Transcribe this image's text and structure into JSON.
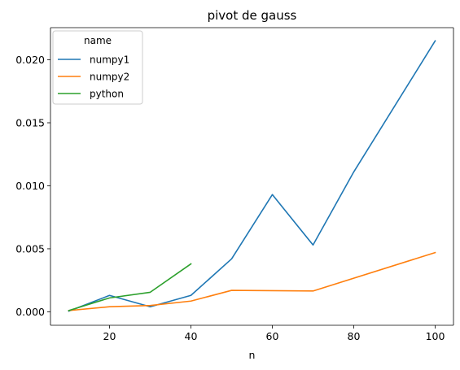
{
  "chart_data": {
    "type": "line",
    "title": "pivot de gauss",
    "xlabel": "n",
    "ylabel": "",
    "xlim": [
      5.5,
      104.5
    ],
    "ylim": [
      -0.00107,
      0.02255
    ],
    "xticks": [
      20,
      40,
      60,
      80,
      100
    ],
    "yticks": [
      0.0,
      0.005,
      0.01,
      0.015,
      0.02
    ],
    "ytick_labels": [
      "0.000",
      "0.005",
      "0.010",
      "0.015",
      "0.020"
    ],
    "grid": false,
    "legend": {
      "title": "name",
      "placement": "top-left"
    },
    "series": [
      {
        "name": "numpy1",
        "color": "#1f77b4",
        "x": [
          10,
          20,
          30,
          40,
          50,
          60,
          70,
          80,
          100
        ],
        "y": [
          5e-05,
          0.0013,
          0.0004,
          0.0013,
          0.0042,
          0.0093,
          0.0053,
          0.0111,
          0.0215
        ]
      },
      {
        "name": "numpy2",
        "color": "#ff7f0e",
        "x": [
          10,
          20,
          30,
          40,
          50,
          70,
          100
        ],
        "y": [
          0.0001,
          0.0004,
          0.0005,
          0.00085,
          0.0017,
          0.00165,
          0.0047
        ]
      },
      {
        "name": "python",
        "color": "#2ca02c",
        "x": [
          10,
          20,
          30,
          40
        ],
        "y": [
          0.0001,
          0.0011,
          0.00155,
          0.0038
        ]
      }
    ]
  }
}
